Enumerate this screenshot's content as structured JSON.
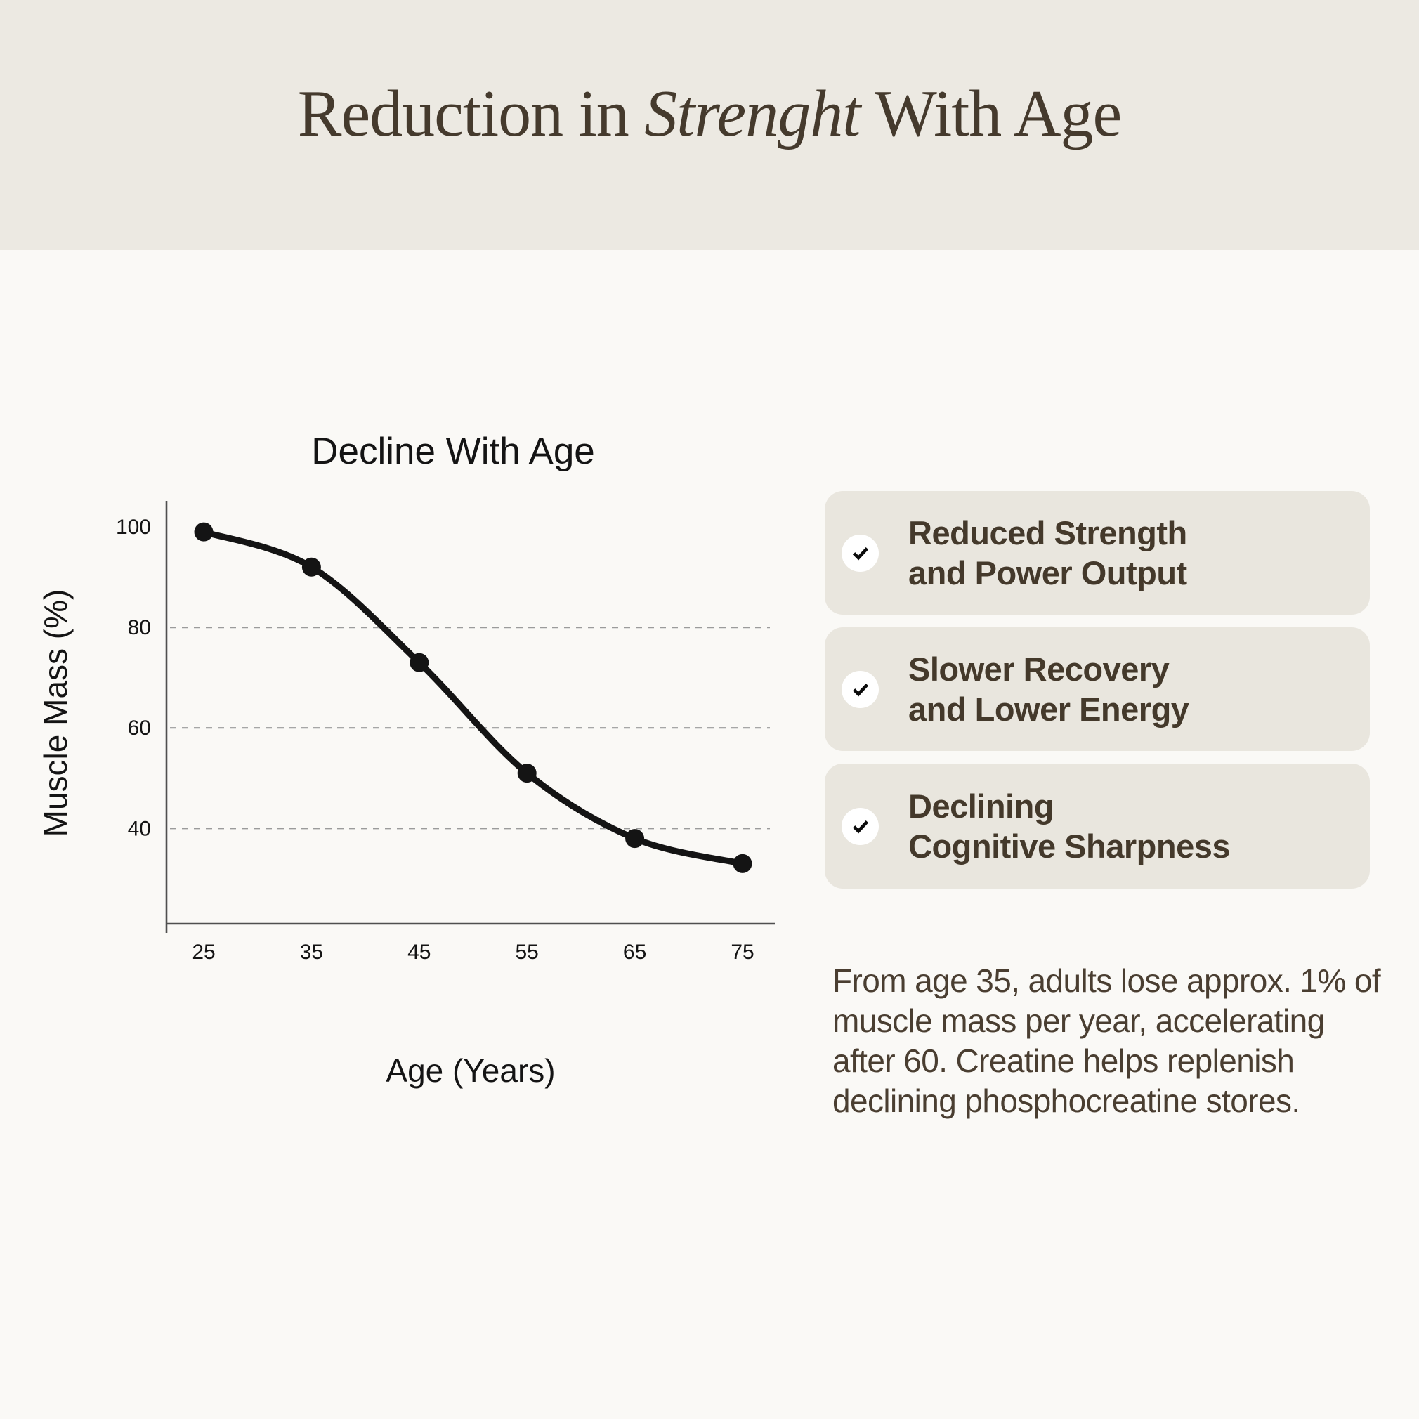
{
  "colors": {
    "page_bg": "#FAF9F6",
    "header_bg": "#ECE9E2",
    "card_bg": "#E9E6DE",
    "title_ink": "#453A2D",
    "body_ink": "#4A3E31",
    "chart_ink": "#141414",
    "axis_gray": "#4F4F4F",
    "grid_gray": "#9B9B9B",
    "check_circle_bg": "#FFFFFF"
  },
  "header": {
    "title_prefix": "Reduction in ",
    "title_italic": "Strenght",
    "title_suffix": " With Age"
  },
  "chart_data": {
    "type": "line",
    "title": "Decline With Age",
    "xlabel": "Age (Years)",
    "ylabel": "Muscle Mass (%)",
    "x": [
      25,
      35,
      45,
      55,
      65,
      75
    ],
    "series": [
      {
        "name": "Muscle Mass (%)",
        "values": [
          99,
          92,
          73,
          51,
          38,
          33
        ]
      }
    ],
    "yticks": [
      100,
      80,
      60,
      40
    ],
    "grid_yticks": [
      80,
      60,
      40
    ],
    "grid": "dashed horizontal",
    "legend": "none",
    "marker": "filled circle",
    "line_color": "#141414",
    "ylim": [
      22,
      108
    ],
    "xlim": [
      21.5,
      78
    ]
  },
  "benefits": [
    {
      "icon": "check",
      "lines": [
        "Reduced Strength",
        "and Power Output"
      ]
    },
    {
      "icon": "check",
      "lines": [
        "Slower Recovery",
        "and Lower Energy"
      ]
    },
    {
      "icon": "check",
      "lines": [
        "Declining",
        "Cognitive Sharpness"
      ]
    }
  ],
  "note": "From age 35, adults lose approx. 1% of muscle mass per year, accelerating after 60. Creatine helps replenish declining phosphocreatine stores."
}
